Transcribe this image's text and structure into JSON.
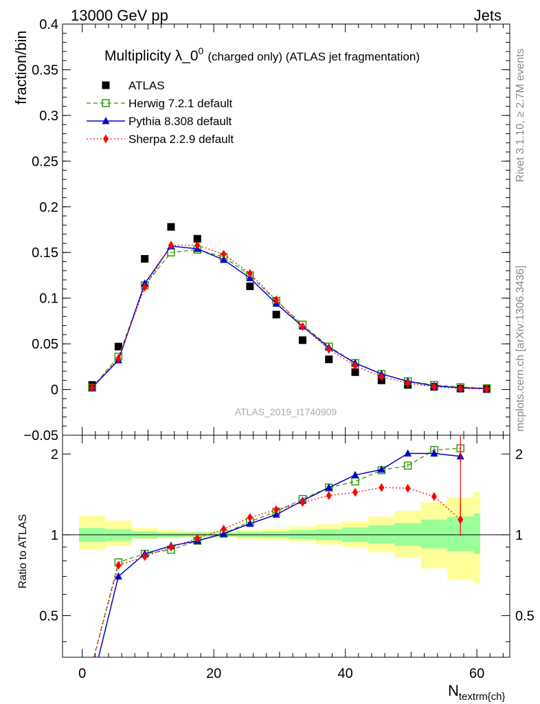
{
  "header": {
    "left": "13000 GeV pp",
    "right": "Jets",
    "side_right": "Rivet 3.1.10, ≥ 2.7M events",
    "side_right2": "mcplots.cern.ch [arXiv:1306.3436]",
    "analysis_id": "ATLAS_2019_I1740909"
  },
  "chart_data": [
    {
      "type": "line",
      "title": "Multiplicity λ_0",
      "title_sup": "0",
      "title_suffix": "(charged only) (ATLAS jet fragmentation)",
      "ylabel": "fraction/bin",
      "xlim": [
        -3,
        65
      ],
      "ylim": [
        -0.05,
        0.4
      ],
      "yticks": [
        "−0.05",
        "0",
        "0.05",
        "0.1",
        "0.15",
        "0.2",
        "0.25",
        "0.3",
        "0.35",
        "0.4"
      ],
      "legend_position": "top-left",
      "x": [
        1.5,
        5.5,
        9.5,
        13.5,
        17.5,
        21.5,
        25.5,
        29.5,
        33.5,
        37.5,
        41.5,
        45.5,
        49.5,
        53.5,
        57.5,
        61.5
      ],
      "series": [
        {
          "name": "ATLAS",
          "color": "#000000",
          "style": "points",
          "marker": "square",
          "values": [
            0.005,
            0.047,
            0.143,
            0.178,
            0.165,
            null,
            0.113,
            0.082,
            0.054,
            0.033,
            0.019,
            0.01,
            0.005,
            0.003,
            0.001,
            0.0005
          ]
        },
        {
          "name": "Herwig 7.2.1 default",
          "color": "#339900",
          "style": "dashed",
          "marker": "open-square",
          "values": [
            0.002,
            0.036,
            0.114,
            0.15,
            0.153,
            0.145,
            0.125,
            0.097,
            0.071,
            0.047,
            0.029,
            0.017,
            0.009,
            0.005,
            0.0025,
            0.0015
          ]
        },
        {
          "name": "Pythia 8.308 default",
          "color": "#0000cc",
          "style": "solid",
          "marker": "triangle",
          "values": [
            0.002,
            0.032,
            0.116,
            0.157,
            0.154,
            0.142,
            0.122,
            0.094,
            0.069,
            0.046,
            0.029,
            0.017,
            0.009,
            0.004,
            0.002,
            0.001
          ]
        },
        {
          "name": "Sherpa 2.2.9 default",
          "color": "#ff0000",
          "style": "dotted",
          "marker": "diamond",
          "values": [
            0.002,
            0.034,
            0.112,
            0.158,
            0.158,
            0.148,
            0.127,
            0.098,
            0.069,
            0.044,
            0.026,
            0.014,
            0.007,
            0.003,
            0.0012,
            0.0006
          ]
        }
      ]
    },
    {
      "type": "line",
      "ylabel": "Ratio to ATLAS",
      "xlabel": "N",
      "xlabel_sub": "textrm{ch}",
      "xlim": [
        -3,
        65
      ],
      "ylim": [
        0.35,
        2.35
      ],
      "yscale": "log",
      "yticks": [
        "0.5",
        "1",
        "2"
      ],
      "xticks": [
        "0",
        "20",
        "40",
        "60"
      ],
      "bands": {
        "inner_color": "#99ff99",
        "outer_color": "#ffff99",
        "bins": [
          {
            "lo": -0.5,
            "hi": 3.5,
            "inner": [
              0.94,
              1.06
            ],
            "outer": [
              0.88,
              1.18
            ]
          },
          {
            "lo": 3.5,
            "hi": 7.5,
            "inner": [
              0.95,
              1.05
            ],
            "outer": [
              0.91,
              1.13
            ]
          },
          {
            "lo": 7.5,
            "hi": 11.5,
            "inner": [
              0.97,
              1.03
            ],
            "outer": [
              0.96,
              1.06
            ]
          },
          {
            "lo": 11.5,
            "hi": 15.5,
            "inner": [
              0.98,
              1.02
            ],
            "outer": [
              0.97,
              1.04
            ]
          },
          {
            "lo": 15.5,
            "hi": 19.5,
            "inner": [
              0.985,
              1.02
            ],
            "outer": [
              0.975,
              1.03
            ]
          },
          {
            "lo": 19.5,
            "hi": 23.5,
            "inner": [
              0.985,
              1.02
            ],
            "outer": [
              0.975,
              1.03
            ]
          },
          {
            "lo": 23.5,
            "hi": 27.5,
            "inner": [
              0.98,
              1.025
            ],
            "outer": [
              0.965,
              1.04
            ]
          },
          {
            "lo": 27.5,
            "hi": 31.5,
            "inner": [
              0.975,
              1.03
            ],
            "outer": [
              0.955,
              1.055
            ]
          },
          {
            "lo": 31.5,
            "hi": 35.5,
            "inner": [
              0.965,
              1.04
            ],
            "outer": [
              0.94,
              1.075
            ]
          },
          {
            "lo": 35.5,
            "hi": 39.5,
            "inner": [
              0.955,
              1.05
            ],
            "outer": [
              0.92,
              1.095
            ]
          },
          {
            "lo": 39.5,
            "hi": 43.5,
            "inner": [
              0.94,
              1.065
            ],
            "outer": [
              0.9,
              1.12
            ]
          },
          {
            "lo": 43.5,
            "hi": 47.5,
            "inner": [
              0.93,
              1.085
            ],
            "outer": [
              0.86,
              1.17
            ]
          },
          {
            "lo": 47.5,
            "hi": 51.5,
            "inner": [
              0.91,
              1.105
            ],
            "outer": [
              0.82,
              1.23
            ]
          },
          {
            "lo": 51.5,
            "hi": 55.5,
            "inner": [
              0.89,
              1.14
            ],
            "outer": [
              0.75,
              1.32
            ]
          },
          {
            "lo": 55.5,
            "hi": 59.5,
            "inner": [
              0.87,
              1.17
            ],
            "outer": [
              0.68,
              1.38
            ]
          },
          {
            "lo": 59.5,
            "hi": 60.5,
            "inner": [
              0.85,
              1.2
            ],
            "outer": [
              0.66,
              1.45
            ]
          }
        ]
      },
      "x": [
        1.5,
        5.5,
        9.5,
        13.5,
        17.5,
        21.5,
        25.5,
        29.5,
        33.5,
        37.5,
        41.5,
        45.5,
        49.5,
        53.5,
        57.5
      ],
      "series": [
        {
          "name": "Herwig 7.2.1 default",
          "color": "#339900",
          "style": "dashed",
          "marker": "open-square",
          "values": [
            0.33,
            0.79,
            0.85,
            0.88,
            0.95,
            1.01,
            1.12,
            1.22,
            1.36,
            1.5,
            1.58,
            1.74,
            1.81,
            2.07,
            2.1
          ],
          "errors": [
            0.0,
            0.0,
            0.0,
            0.0,
            0.0,
            0.0,
            0.0,
            0.0,
            0.0,
            0.0,
            0.0,
            0.0,
            0.03,
            0.05,
            0.06
          ]
        },
        {
          "name": "Pythia 8.308 default",
          "color": "#0000cc",
          "style": "solid",
          "marker": "triangle",
          "values": [
            0.28,
            0.7,
            0.85,
            0.91,
            0.95,
            1.01,
            1.1,
            1.19,
            1.34,
            1.5,
            1.67,
            1.75,
            2.01,
            2.01,
            1.96
          ],
          "errors": [
            0.0,
            0.0,
            0.0,
            0.0,
            0.0,
            0.0,
            0.0,
            0.0,
            0.0,
            0.0,
            0.0,
            0.02,
            0.05,
            0.06,
            0.1
          ]
        },
        {
          "name": "Sherpa 2.2.9 default",
          "color": "#ff0000",
          "style": "dotted",
          "marker": "diamond",
          "values": [
            0.33,
            0.77,
            0.83,
            0.9,
            0.97,
            1.05,
            1.16,
            1.24,
            1.32,
            1.4,
            1.44,
            1.5,
            1.49,
            1.39,
            1.14
          ],
          "errors": [
            0.0,
            0.0,
            0.0,
            0.0,
            0.0,
            0.0,
            0.0,
            0.0,
            0.0,
            0.0,
            0.0,
            0.0,
            0.03,
            0.05,
            0.15
          ]
        }
      ]
    }
  ]
}
